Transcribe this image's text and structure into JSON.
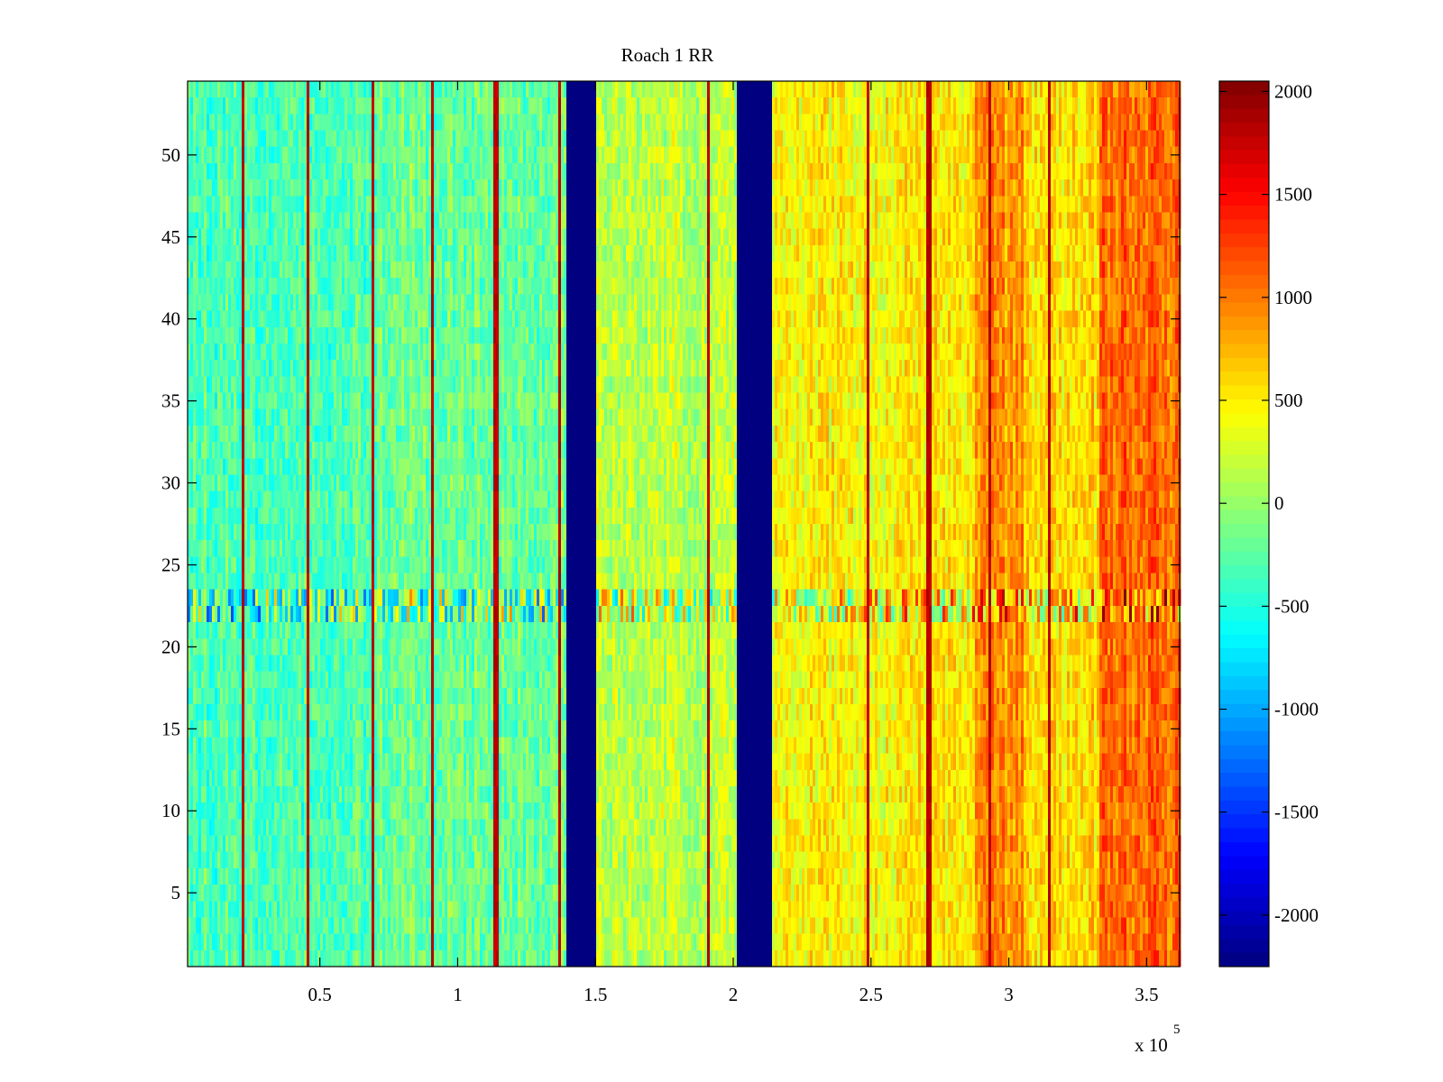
{
  "chart_data": {
    "type": "heatmap",
    "title": "Roach 1 RR",
    "xlabel": "",
    "ylabel": "",
    "x_exponent_label": "x 10",
    "x_exponent_power": "5",
    "xlim": [
      0.02,
      3.62
    ],
    "ylim": [
      0.5,
      54.5
    ],
    "x_scale": 100000,
    "x_ticks": [
      0.5,
      1,
      1.5,
      2,
      2.5,
      3,
      3.5
    ],
    "x_tick_labels": [
      "0.5",
      "1",
      "1.5",
      "2",
      "2.5",
      "3",
      "3.5"
    ],
    "y_ticks": [
      5,
      10,
      15,
      20,
      25,
      30,
      35,
      40,
      45,
      50
    ],
    "y_tick_labels": [
      "5",
      "10",
      "15",
      "20",
      "25",
      "30",
      "35",
      "40",
      "45",
      "50"
    ],
    "colormap": "jet",
    "clim": [
      -2250,
      2050
    ],
    "colorbar_ticks": [
      2000,
      1500,
      1000,
      500,
      0,
      -500,
      -1000,
      -1500,
      -2000
    ],
    "colorbar_tick_labels": [
      "2000",
      "1500",
      "1000",
      "500",
      "0",
      "-500",
      "-1000",
      "-1500",
      "-2000"
    ],
    "num_rows": 54,
    "band_profile": [
      {
        "x_from": 0.02,
        "x_to": 0.7,
        "mean": -300
      },
      {
        "x_from": 0.7,
        "x_to": 1.39,
        "mean": -200
      },
      {
        "x_from": 1.39,
        "x_to": 1.5,
        "mean": -2250,
        "label": "dropout band"
      },
      {
        "x_from": 1.5,
        "x_to": 2.01,
        "mean": 150
      },
      {
        "x_from": 2.01,
        "x_to": 2.14,
        "mean": -2250,
        "label": "dropout band"
      },
      {
        "x_from": 2.14,
        "x_to": 2.6,
        "mean": 450
      },
      {
        "x_from": 2.6,
        "x_to": 2.88,
        "mean": 550
      },
      {
        "x_from": 2.88,
        "x_to": 3.05,
        "mean": 900
      },
      {
        "x_from": 3.05,
        "x_to": 3.33,
        "mean": 600
      },
      {
        "x_from": 3.33,
        "x_to": 3.62,
        "mean": 1050
      }
    ],
    "spike_lines_x": [
      0.22,
      0.46,
      0.69,
      0.91,
      1.14,
      1.37,
      1.91,
      2.49,
      2.71,
      2.93,
      3.15
    ],
    "spike_value": 1900,
    "noisy_rows": [
      22,
      23
    ],
    "noisy_rows_extra_variance": 900
  }
}
